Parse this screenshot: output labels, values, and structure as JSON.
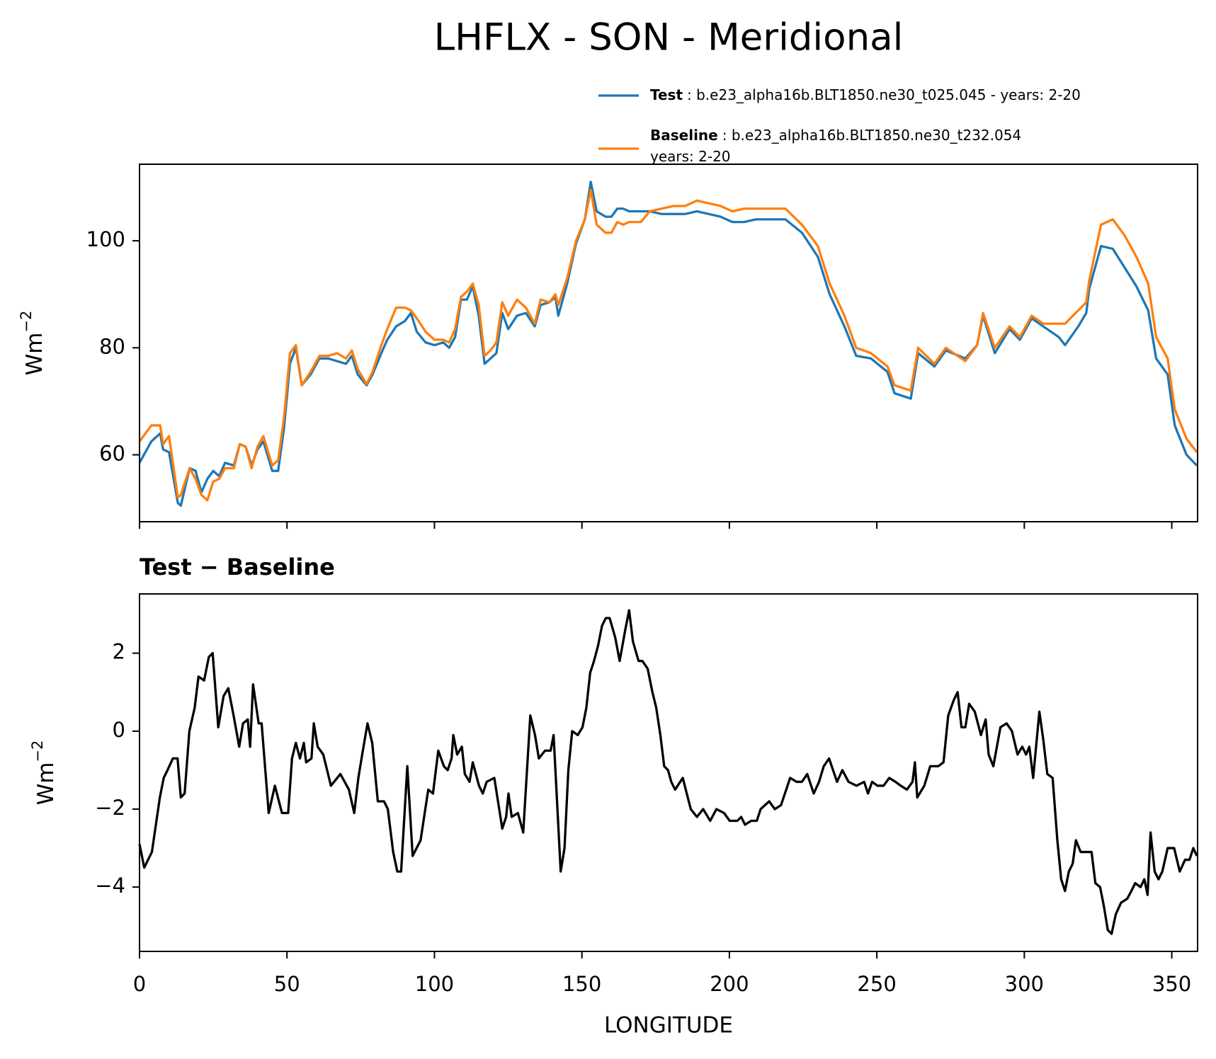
{
  "title": "LHFLX - SON - Meridional",
  "chart_data": [
    {
      "type": "line",
      "ylabel": "Wm",
      "ylabel_sup": "−2",
      "xlim": [
        0,
        358.75
      ],
      "ylim": [
        47.5,
        114.3
      ],
      "xticks": [
        0,
        50,
        100,
        150,
        200,
        250,
        300,
        350
      ],
      "yticks": [
        60,
        80,
        100
      ],
      "legend": "upper right",
      "x": [
        0,
        2,
        4,
        7,
        8,
        10,
        13,
        14,
        17,
        19,
        21,
        23,
        25,
        27,
        29,
        32,
        34,
        36,
        38,
        40,
        42,
        45,
        47,
        49,
        51,
        53,
        55,
        58,
        61,
        64,
        67,
        70,
        72,
        74,
        77,
        79,
        82,
        84,
        87,
        90,
        92,
        94,
        97,
        100,
        103,
        105,
        107,
        109,
        111,
        113,
        115,
        117,
        119,
        121,
        123,
        125,
        128,
        131,
        134,
        136,
        139,
        141,
        142,
        145,
        148,
        151,
        153,
        155,
        158,
        160,
        162,
        164,
        166,
        170,
        173,
        177,
        181,
        185,
        189,
        193,
        197,
        201,
        205,
        209,
        213,
        219,
        224.6,
        230,
        234,
        239,
        243,
        248,
        253.6,
        256,
        261.5,
        264,
        269.5,
        273.4,
        280,
        284,
        286,
        290,
        295,
        298.5,
        302.5,
        306.4,
        311.7,
        313.8,
        318.3,
        321,
        322,
        326,
        330,
        334,
        338,
        342,
        344.7,
        348.6,
        351,
        355,
        358.5
      ],
      "series": [
        {
          "name": "Test",
          "description": [
            ": b.e23_alpha16b.BLT1850.ne30_t025.045 - years: 2-20"
          ],
          "color": "#1f77b4",
          "values": [
            58.5,
            60.5,
            62.5,
            64,
            61,
            60.5,
            51,
            50.5,
            57.5,
            57,
            53,
            55.5,
            57,
            56,
            58.5,
            58,
            62,
            61.5,
            58,
            61,
            62.5,
            57,
            57,
            65,
            77,
            80,
            73,
            75,
            78,
            78,
            77.5,
            77,
            78.5,
            75,
            73,
            75,
            79,
            81.5,
            84,
            85,
            86.5,
            83,
            81,
            80.5,
            81,
            80,
            82,
            89,
            89,
            91.5,
            86,
            77,
            78,
            79,
            86.5,
            83.5,
            86,
            86.5,
            84,
            88,
            88.5,
            89.5,
            86,
            92,
            99.5,
            104,
            111,
            105.5,
            104.5,
            104.5,
            106,
            106,
            105.5,
            105.5,
            105.5,
            105,
            105,
            105,
            105.5,
            105,
            104.5,
            103.5,
            103.5,
            104,
            104,
            104,
            101.5,
            97,
            90,
            84,
            78.5,
            78,
            75.5,
            71.5,
            70.5,
            79,
            76.5,
            79.5,
            78,
            80.5,
            86,
            79,
            83.5,
            81.5,
            85.5,
            84,
            82,
            80.5,
            84,
            86.5,
            91,
            99,
            98.5,
            95,
            91.5,
            87,
            78,
            75,
            65.5,
            60,
            58
          ]
        },
        {
          "name": "Baseline",
          "description": [
            ": b.e23_alpha16b.BLT1850.ne30_t232.054",
            "years: 2-20"
          ],
          "color": "#ff7f0e",
          "values": [
            62.5,
            64,
            65.5,
            65.5,
            62,
            63.5,
            52,
            52.5,
            57.5,
            55.5,
            52.5,
            51.5,
            55,
            55.5,
            57.5,
            57.5,
            62,
            61.5,
            57.5,
            61.5,
            63.5,
            58,
            59,
            67,
            79,
            80.5,
            73,
            75.5,
            78.5,
            78.5,
            79,
            78,
            79.5,
            76,
            73.2,
            75.5,
            80.5,
            83.5,
            87.5,
            87.5,
            87,
            85.5,
            83,
            81.5,
            81.5,
            81,
            83.5,
            89.5,
            90.5,
            92,
            88,
            78.5,
            79.5,
            81,
            88.5,
            86,
            89,
            87.5,
            84.5,
            89,
            88.5,
            90,
            88,
            93,
            100,
            104,
            109.5,
            103,
            101.5,
            101.5,
            103.5,
            103,
            103.5,
            103.5,
            105.5,
            106,
            106.5,
            106.5,
            107.5,
            107,
            106.5,
            105.5,
            106,
            106,
            106,
            106,
            103,
            99,
            92,
            86,
            80,
            79,
            76.5,
            73,
            72,
            80,
            77,
            80,
            77.5,
            80.5,
            86.5,
            80,
            84,
            82,
            86,
            84.5,
            84.5,
            84.5,
            87,
            88.5,
            92.5,
            103,
            104,
            101,
            97,
            92,
            82,
            78,
            68.5,
            63,
            60.5
          ]
        }
      ]
    },
    {
      "type": "line",
      "title": "Test − Baseline",
      "ylabel": "Wm",
      "ylabel_sup": "−2",
      "xlabel": "LONGITUDE",
      "xlim": [
        0,
        358.75
      ],
      "ylim": [
        -5.65,
        3.52
      ],
      "xticks": [
        0,
        50,
        100,
        150,
        200,
        250,
        300,
        350
      ],
      "yticks": [
        {
          "value": -4,
          "label": "−4"
        },
        {
          "value": -2,
          "label": "−2"
        },
        0,
        2
      ],
      "x": [
        0,
        1.6,
        4.2,
        6.9,
        8.2,
        9.5,
        11.3,
        12.9,
        14,
        15.3,
        16.9,
        18.7,
        20,
        21.9,
        23.5,
        24.8,
        26.7,
        28.5,
        30.1,
        31.9,
        33.8,
        35.1,
        36.7,
        37.5,
        38.5,
        40.4,
        41.4,
        43.8,
        45.9,
        48.3,
        50.4,
        51.7,
        53,
        54.4,
        55.7,
        56.5,
        58.3,
        59.1,
        60.4,
        62.3,
        64.9,
        68.1,
        71,
        72.8,
        74.2,
        75.5,
        77.3,
        78.9,
        80.8,
        82.9,
        84.2,
        86,
        87.4,
        88.7,
        90.8,
        92.6,
        95.3,
        97.9,
        99.5,
        101.3,
        103.2,
        104.5,
        105.8,
        106.4,
        107.7,
        109.3,
        110.3,
        111.9,
        113,
        115.1,
        116.4,
        117.7,
        120.3,
        123,
        124.3,
        125.1,
        126.2,
        128.3,
        130.1,
        132.5,
        134.1,
        135.4,
        137.5,
        139.4,
        140.4,
        142.8,
        144.1,
        145.4,
        146.7,
        148.6,
        150.2,
        151.5,
        152.8,
        154.1,
        155.5,
        156.8,
        158.1,
        159.4,
        161.3,
        162.8,
        164.7,
        166,
        167.3,
        169.2,
        170.5,
        172.3,
        173.9,
        175.2,
        176.6,
        177.9,
        179.2,
        180.3,
        181.6,
        184.2,
        186.9,
        189,
        191.1,
        193.5,
        195.6,
        198.2,
        200.1,
        202.7,
        204,
        205.3,
        207.4,
        209.3,
        210.6,
        213.5,
        215.4,
        217.5,
        220.6,
        222.8,
        224.6,
        226.4,
        228.6,
        230.4,
        232,
        233.8,
        236.5,
        238.3,
        240.4,
        243.1,
        245.7,
        247,
        248.4,
        250.2,
        252.3,
        254.2,
        256.3,
        258.1,
        260.2,
        262.1,
        262.9,
        263.7,
        266.1,
        268.1,
        270.8,
        272.6,
        274.2,
        276.1,
        277.4,
        278.7,
        280,
        281.3,
        283.2,
        285.3,
        286.9,
        287.9,
        289.5,
        291.9,
        294,
        295.8,
        297.7,
        299.3,
        300.6,
        301.7,
        303,
        305.1,
        306.4,
        307.8,
        309.6,
        311.2,
        312.5,
        313.8,
        315.1,
        316.4,
        317.5,
        319.1,
        322.8,
        324.1,
        325.7,
        327,
        328.3,
        329.6,
        331,
        332.8,
        334.9,
        336.3,
        337.6,
        339.4,
        340.7,
        341.8,
        342.8,
        344.2,
        345.5,
        346.8,
        348.6,
        350.8,
        352.7,
        354.5,
        356,
        357.3,
        358.5
      ],
      "series": [
        {
          "color": "#000000",
          "values": [
            -2.9,
            -3.5,
            -3.1,
            -1.7,
            -1.2,
            -1.0,
            -0.7,
            -0.7,
            -1.7,
            -1.6,
            0,
            0.6,
            1.4,
            1.3,
            1.9,
            2.0,
            0.1,
            0.9,
            1.1,
            0.4,
            -0.4,
            0.2,
            0.3,
            -0.4,
            1.2,
            0.2,
            0.2,
            -2.1,
            -1.4,
            -2.1,
            -2.1,
            -0.7,
            -0.3,
            -0.7,
            -0.3,
            -0.8,
            -0.7,
            0.2,
            -0.4,
            -0.6,
            -1.4,
            -1.1,
            -1.5,
            -2.1,
            -1.2,
            -0.6,
            0.2,
            -0.3,
            -1.8,
            -1.8,
            -2.0,
            -3.1,
            -3.6,
            -3.6,
            -0.9,
            -3.2,
            -2.8,
            -1.5,
            -1.6,
            -0.5,
            -0.9,
            -1.0,
            -0.7,
            -0.1,
            -0.6,
            -0.4,
            -1.1,
            -1.3,
            -0.8,
            -1.4,
            -1.6,
            -1.3,
            -1.2,
            -2.5,
            -2.2,
            -1.6,
            -2.2,
            -2.1,
            -2.6,
            0.4,
            -0.1,
            -0.7,
            -0.5,
            -0.5,
            -0.1,
            -3.6,
            -3.0,
            -1.0,
            0.0,
            -0.1,
            0.1,
            0.6,
            1.5,
            1.8,
            2.2,
            2.7,
            2.9,
            2.9,
            2.4,
            1.8,
            2.6,
            3.1,
            2.3,
            1.8,
            1.8,
            1.6,
            1.0,
            0.6,
            -0.1,
            -0.9,
            -1.0,
            -1.3,
            -1.5,
            -1.2,
            -2.0,
            -2.2,
            -2.0,
            -2.3,
            -2.0,
            -2.1,
            -2.3,
            -2.3,
            -2.2,
            -2.4,
            -2.3,
            -2.3,
            -2.0,
            -1.8,
            -2.0,
            -1.9,
            -1.2,
            -1.3,
            -1.3,
            -1.1,
            -1.6,
            -1.3,
            -0.9,
            -0.7,
            -1.3,
            -1.0,
            -1.3,
            -1.4,
            -1.3,
            -1.6,
            -1.3,
            -1.4,
            -1.4,
            -1.2,
            -1.3,
            -1.4,
            -1.5,
            -1.3,
            -0.8,
            -1.7,
            -1.4,
            -0.9,
            -0.9,
            -0.8,
            0.4,
            0.8,
            1.0,
            0.1,
            0.1,
            0.7,
            0.5,
            -0.1,
            0.3,
            -0.6,
            -0.9,
            0.1,
            0.2,
            0.0,
            -0.6,
            -0.4,
            -0.6,
            -0.4,
            -1.2,
            0.5,
            -0.2,
            -1.1,
            -1.2,
            -2.8,
            -3.8,
            -4.1,
            -3.6,
            -3.4,
            -2.8,
            -3.1,
            -3.1,
            -3.9,
            -4.0,
            -4.5,
            -5.1,
            -5.2,
            -4.7,
            -4.4,
            -4.3,
            -4.1,
            -3.9,
            -4.0,
            -3.8,
            -4.2,
            -2.6,
            -3.6,
            -3.8,
            -3.6,
            -3.0,
            -3.0,
            -3.6,
            -3.3,
            -3.3,
            -3.0,
            -3.2
          ]
        }
      ]
    }
  ]
}
